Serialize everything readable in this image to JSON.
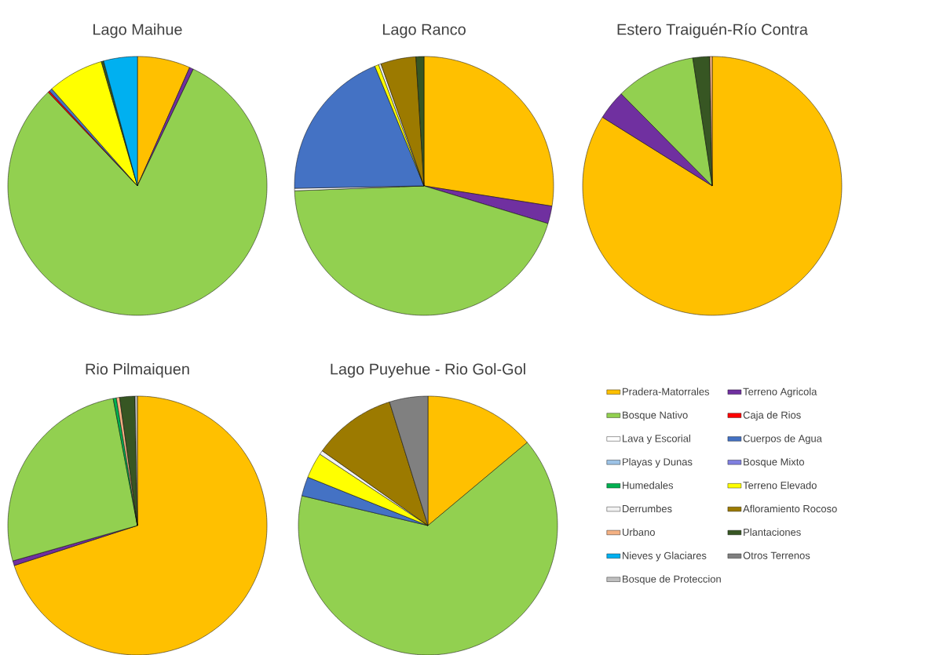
{
  "chart_data": [
    {
      "type": "pie",
      "title": "Lago Maihue",
      "categories": [
        null,
        null,
        null,
        null,
        null,
        null,
        null,
        null
      ],
      "values": [
        6.6,
        0.5,
        80.8,
        0.2,
        0.4,
        7.0,
        0.3,
        4.2
      ],
      "colors": [
        "#ffc000",
        "#7030a0",
        "#92d050",
        "#ff0000",
        "#4472c4",
        "#ffff00",
        "#375623",
        "#00b0f0"
      ]
    },
    {
      "type": "pie",
      "title": "Lago Ranco",
      "categories": [
        null,
        null,
        null,
        null,
        null,
        null,
        null,
        null,
        null
      ],
      "values": [
        27.5,
        2.2,
        44.7,
        0.3,
        19.1,
        0.5,
        0.3,
        4.4,
        1.0
      ],
      "colors": [
        "#ffc000",
        "#7030a0",
        "#92d050",
        "#ffffff",
        "#4472c4",
        "#ffff00",
        "#f2f2f2",
        "#9c7a00",
        "#375623"
      ]
    },
    {
      "type": "pie",
      "title": "Estero Traiguén-Río Contra",
      "categories": [
        null,
        null,
        null,
        null,
        null
      ],
      "values": [
        83.9,
        3.7,
        10.0,
        2.1,
        0.3
      ],
      "colors": [
        "#ffc000",
        "#7030a0",
        "#92d050",
        "#375623",
        "#f4b183"
      ]
    },
    {
      "type": "pie",
      "title": "Rio Pilmaiquen",
      "categories": [
        null,
        null,
        null,
        null,
        null,
        null,
        null
      ],
      "values": [
        70.0,
        0.6,
        26.4,
        0.4,
        0.4,
        1.9,
        0.3
      ],
      "colors": [
        "#ffc000",
        "#7030a0",
        "#92d050",
        "#00b050",
        "#f4b183",
        "#375623",
        "#bfbfbf"
      ]
    },
    {
      "type": "pie",
      "title": "Lago Puyehue - Rio Gol-Gol",
      "categories": [
        "Pradera-Matorrales",
        "Terreno Agricola",
        "Bosque Nativo",
        "Caja de Rios",
        "Lava y Escorial",
        "Cuerpos de Agua",
        "Playas y Dunas",
        "Bosque Mixto",
        "Humedales",
        "Terreno Elevado",
        "Derrumbes",
        "Afloramiento Rocoso",
        "Urbano",
        "Plantaciones",
        "Nieves y Glaciares",
        "Otros Terrenos",
        "Bosque de Proteccion"
      ],
      "values": [
        13.9,
        0,
        64.8,
        0,
        0,
        2.4,
        0,
        0,
        0,
        3.2,
        0.5,
        10.4,
        0,
        0,
        0,
        4.8,
        0
      ],
      "colors": [
        "#ffc000",
        "#7030a0",
        "#92d050",
        "#ff0000",
        "#ffffff",
        "#4472c4",
        "#9dc3e6",
        "#8080e0",
        "#00b050",
        "#ffff00",
        "#f2f2f2",
        "#9c7a00",
        "#f4b183",
        "#375623",
        "#00b0f0",
        "#808080",
        "#bfbfbf"
      ],
      "legend": "right"
    }
  ]
}
